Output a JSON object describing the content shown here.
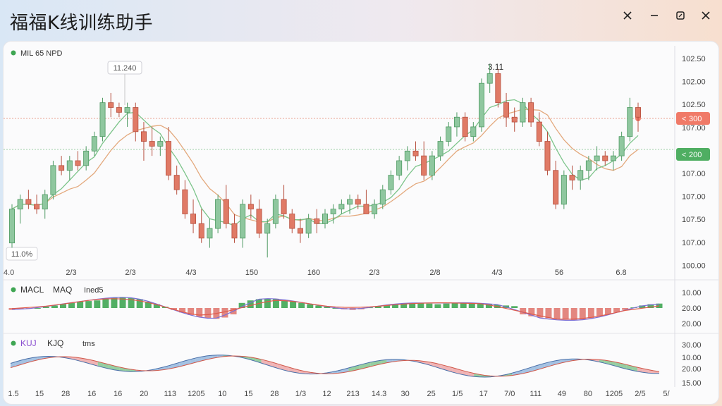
{
  "window": {
    "title": "福福K线训练助手",
    "controls": [
      {
        "name": "settings",
        "icon": "gear-icon"
      },
      {
        "name": "minimize",
        "icon": "minimize-icon"
      },
      {
        "name": "restore",
        "icon": "restore-icon"
      },
      {
        "name": "close",
        "icon": "close-icon"
      }
    ]
  },
  "colors": {
    "up": "#8fc79f",
    "up_edge": "#4f9a63",
    "down": "#e07a66",
    "down_edge": "#b6503f",
    "ma_orange": "#e3a87c",
    "ma_green": "#7cc48a",
    "macd_pos": "#3fa653",
    "macd_neg": "#e07a72",
    "dif": "#7c6fd4",
    "dea": "#e05a4a",
    "status_dot": "#3fa653"
  },
  "main": {
    "legend": "MIL 65   NPD",
    "tooltip": "11.240",
    "peak_label": "3.11",
    "min_label": "11.0%",
    "price_ticks": [
      "102.50",
      "102.00",
      "102.50",
      "107.00",
      "102.00",
      "107.00",
      "107.00",
      "107.50",
      "107.00",
      "100.00"
    ],
    "badges": [
      {
        "label": "300",
        "tone": "red"
      },
      {
        "label": "200",
        "tone": "green"
      }
    ],
    "x_ticks": [
      "2/3",
      "2/3",
      "4/3",
      "150",
      "160",
      "2/3",
      "2/8",
      "4/3",
      "56",
      "6.8"
    ],
    "x_label_left": "4.0"
  },
  "macd": {
    "legend": [
      "MACL",
      "MAQ",
      "Ined5"
    ],
    "ticks": [
      "10.00",
      "20.00",
      "20.00"
    ]
  },
  "kdj": {
    "legend": [
      "KUJ",
      "KJQ",
      "tms"
    ],
    "ticks": [
      "30.00",
      "10.00",
      "20.00",
      "15.00"
    ],
    "x_ticks": [
      "1.5",
      "15",
      "28",
      "16",
      "16",
      "20",
      "113",
      "1205",
      "10",
      "15",
      "28",
      "1/3",
      "12",
      "213",
      "14.3",
      "30",
      "25",
      "1/5",
      "17",
      "7/0",
      "111",
      "49",
      "80",
      "1205",
      "2/5",
      "5/"
    ]
  },
  "chart_data": {
    "type": "candlestick",
    "series": [
      {
        "name": "candles",
        "ohlc": [
          [
            106.9,
            107.7,
            106.8,
            107.6
          ],
          [
            107.6,
            107.9,
            107.3,
            107.8
          ],
          [
            107.8,
            108.0,
            107.6,
            107.7
          ],
          [
            107.7,
            107.9,
            107.5,
            107.6
          ],
          [
            107.6,
            108.0,
            107.4,
            107.9
          ],
          [
            107.9,
            108.6,
            107.8,
            108.5
          ],
          [
            108.5,
            108.7,
            108.3,
            108.4
          ],
          [
            108.4,
            108.7,
            108.2,
            108.6
          ],
          [
            108.6,
            108.8,
            108.4,
            108.5
          ],
          [
            108.5,
            108.9,
            108.4,
            108.8
          ],
          [
            108.8,
            109.2,
            108.7,
            109.1
          ],
          [
            109.1,
            109.9,
            109.0,
            109.8
          ],
          [
            109.8,
            110.0,
            109.5,
            109.7
          ],
          [
            109.7,
            109.8,
            109.5,
            109.6
          ],
          [
            109.6,
            109.8,
            109.3,
            109.7
          ],
          [
            109.7,
            109.8,
            109.0,
            109.2
          ],
          [
            109.2,
            109.4,
            108.6,
            109.0
          ],
          [
            109.0,
            109.3,
            108.7,
            108.9
          ],
          [
            108.9,
            109.1,
            108.7,
            109.0
          ],
          [
            109.0,
            109.3,
            108.2,
            108.3
          ],
          [
            108.3,
            108.5,
            107.9,
            108.0
          ],
          [
            108.0,
            108.2,
            107.4,
            107.5
          ],
          [
            107.5,
            107.8,
            107.1,
            107.3
          ],
          [
            107.3,
            107.6,
            106.9,
            107.0
          ],
          [
            107.0,
            107.4,
            106.8,
            107.2
          ],
          [
            107.2,
            107.9,
            107.1,
            107.8
          ],
          [
            107.8,
            108.1,
            107.2,
            107.3
          ],
          [
            107.3,
            107.5,
            106.9,
            107.0
          ],
          [
            107.0,
            107.8,
            106.8,
            107.7
          ],
          [
            107.7,
            107.9,
            107.4,
            107.6
          ],
          [
            107.6,
            107.8,
            107.0,
            107.1
          ],
          [
            107.1,
            107.4,
            106.6,
            107.3
          ],
          [
            107.3,
            107.9,
            107.2,
            107.8
          ],
          [
            107.8,
            108.1,
            107.4,
            107.5
          ],
          [
            107.5,
            107.6,
            107.1,
            107.2
          ],
          [
            107.2,
            107.4,
            106.9,
            107.1
          ],
          [
            107.1,
            107.5,
            107.0,
            107.4
          ],
          [
            107.4,
            107.6,
            107.1,
            107.3
          ],
          [
            107.3,
            107.6,
            107.2,
            107.5
          ],
          [
            107.5,
            107.7,
            107.3,
            107.6
          ],
          [
            107.6,
            107.8,
            107.5,
            107.7
          ],
          [
            107.7,
            107.9,
            107.5,
            107.8
          ],
          [
            107.8,
            107.9,
            107.6,
            107.7
          ],
          [
            107.7,
            108.0,
            107.5,
            107.5
          ],
          [
            107.5,
            107.8,
            107.4,
            107.7
          ],
          [
            107.7,
            108.1,
            107.6,
            108.0
          ],
          [
            108.0,
            108.4,
            107.9,
            108.3
          ],
          [
            108.3,
            108.7,
            108.2,
            108.6
          ],
          [
            108.6,
            108.9,
            108.4,
            108.8
          ],
          [
            108.8,
            109.0,
            108.6,
            108.7
          ],
          [
            108.7,
            109.0,
            108.2,
            108.3
          ],
          [
            108.3,
            108.8,
            108.2,
            108.7
          ],
          [
            108.7,
            109.1,
            108.6,
            109.0
          ],
          [
            109.0,
            109.4,
            108.9,
            109.3
          ],
          [
            109.3,
            109.6,
            109.1,
            109.5
          ],
          [
            109.5,
            109.6,
            109.0,
            109.1
          ],
          [
            109.1,
            109.4,
            109.0,
            109.3
          ],
          [
            109.3,
            110.3,
            109.2,
            110.2
          ],
          [
            110.2,
            110.6,
            110.0,
            110.4
          ],
          [
            110.4,
            110.5,
            109.7,
            109.8
          ],
          [
            109.8,
            110.0,
            109.3,
            109.5
          ],
          [
            109.5,
            109.7,
            109.2,
            109.4
          ],
          [
            109.4,
            109.9,
            109.3,
            109.8
          ],
          [
            109.8,
            109.9,
            109.3,
            109.4
          ],
          [
            109.4,
            109.6,
            108.9,
            109.0
          ],
          [
            109.0,
            109.2,
            108.3,
            108.4
          ],
          [
            108.4,
            108.6,
            107.6,
            107.7
          ],
          [
            107.7,
            108.4,
            107.6,
            108.3
          ],
          [
            108.3,
            108.5,
            108.0,
            108.2
          ],
          [
            108.2,
            108.5,
            108.0,
            108.4
          ],
          [
            108.4,
            108.7,
            108.2,
            108.6
          ],
          [
            108.6,
            108.9,
            108.4,
            108.7
          ],
          [
            108.7,
            108.8,
            108.5,
            108.6
          ],
          [
            108.6,
            108.8,
            108.4,
            108.7
          ],
          [
            108.7,
            109.2,
            108.6,
            109.1
          ],
          [
            109.1,
            109.9,
            109.0,
            109.7
          ],
          [
            109.7,
            109.8,
            109.2,
            109.5
          ]
        ]
      },
      {
        "name": "MA-orange"
      },
      {
        "name": "MA-green"
      }
    ],
    "macd": [
      -0.3,
      -0.2,
      -0.1,
      0.0,
      0.2,
      0.4,
      0.6,
      0.8,
      1.0,
      1.1,
      1.2,
      1.4,
      1.6,
      1.7,
      1.6,
      1.4,
      1.0,
      0.6,
      0.2,
      -0.3,
      -0.7,
      -1.1,
      -1.4,
      -1.6,
      -1.7,
      -1.5,
      -1.0,
      0.8,
      1.2,
      1.4,
      1.5,
      1.4,
      1.2,
      1.0,
      0.8,
      0.6,
      0.4,
      0.2,
      0.0,
      -0.2,
      -0.3,
      -0.2,
      0.1,
      0.3,
      0.5,
      0.6,
      0.7,
      0.8,
      0.8,
      0.7,
      0.6,
      0.7,
      0.8,
      0.8,
      0.8,
      0.7,
      0.6,
      0.5,
      0.4,
      0.3,
      -1.0,
      -1.3,
      -1.5,
      -1.6,
      -1.7,
      -1.8,
      -1.9,
      -1.8,
      -1.6,
      -1.3,
      -1.0,
      -0.7,
      -0.3,
      0.1,
      0.4,
      0.6,
      0.7
    ],
    "ylim": [
      106.4,
      110.8
    ]
  }
}
